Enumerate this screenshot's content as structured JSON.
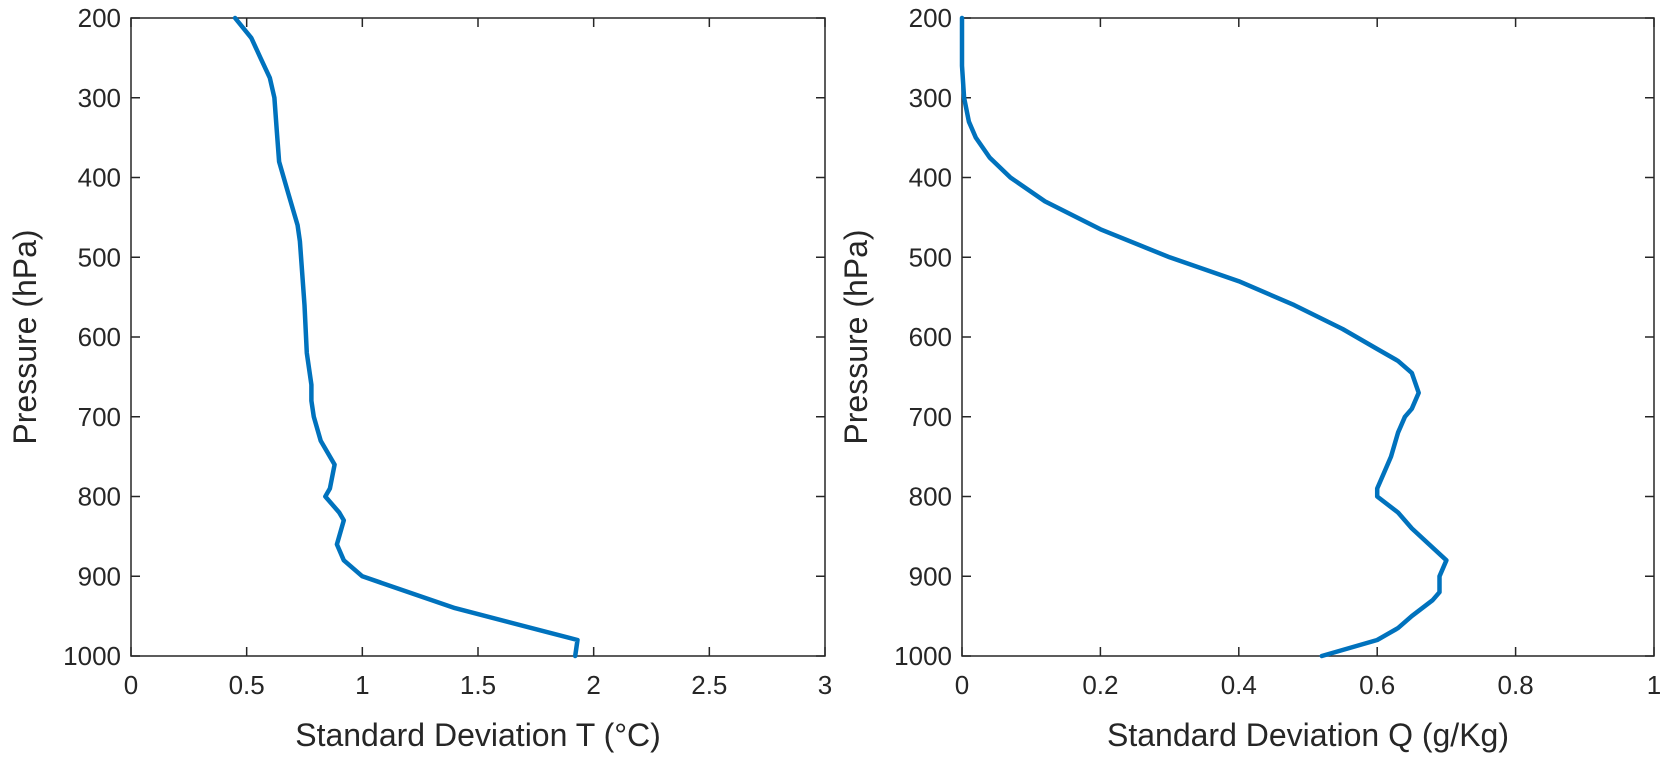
{
  "chart_data": [
    {
      "type": "line",
      "xlabel": "Standard Deviation T (°C)",
      "ylabel": "Pressure (hPa)",
      "xlim": [
        0,
        3
      ],
      "ylim": [
        200,
        1000
      ],
      "y_reversed": true,
      "grid": false,
      "xticks": [
        0,
        0.5,
        1,
        1.5,
        2,
        2.5,
        3
      ],
      "xtick_labels": [
        "0",
        "0.5",
        "1",
        "1.5",
        "2",
        "2.5",
        "3"
      ],
      "yticks": [
        200,
        300,
        400,
        500,
        600,
        700,
        800,
        900,
        1000
      ],
      "ytick_labels": [
        "200",
        "300",
        "400",
        "500",
        "600",
        "700",
        "800",
        "900",
        "1000"
      ],
      "color": "#0072BD",
      "series": [
        {
          "points": [
            [
              0.45,
              200
            ],
            [
              0.52,
              225
            ],
            [
              0.56,
              250
            ],
            [
              0.6,
              275
            ],
            [
              0.62,
              300
            ],
            [
              0.63,
              340
            ],
            [
              0.64,
              380
            ],
            [
              0.68,
              420
            ],
            [
              0.72,
              460
            ],
            [
              0.73,
              480
            ],
            [
              0.75,
              560
            ],
            [
              0.76,
              620
            ],
            [
              0.78,
              660
            ],
            [
              0.78,
              680
            ],
            [
              0.79,
              700
            ],
            [
              0.82,
              730
            ],
            [
              0.88,
              760
            ],
            [
              0.86,
              790
            ],
            [
              0.84,
              800
            ],
            [
              0.9,
              820
            ],
            [
              0.92,
              830
            ],
            [
              0.91,
              840
            ],
            [
              0.89,
              860
            ],
            [
              0.92,
              880
            ],
            [
              1.0,
              900
            ],
            [
              1.4,
              940
            ],
            [
              1.93,
              980
            ],
            [
              1.92,
              1000
            ]
          ]
        }
      ]
    },
    {
      "type": "line",
      "xlabel": "Standard Deviation Q (g/Kg)",
      "ylabel": "Pressure (hPa)",
      "xlim": [
        0,
        1
      ],
      "ylim": [
        200,
        1000
      ],
      "y_reversed": true,
      "grid": false,
      "xticks": [
        0,
        0.2,
        0.4,
        0.6,
        0.8,
        1
      ],
      "xtick_labels": [
        "0",
        "0.2",
        "0.4",
        "0.6",
        "0.8",
        "1"
      ],
      "yticks": [
        200,
        300,
        400,
        500,
        600,
        700,
        800,
        900,
        1000
      ],
      "ytick_labels": [
        "200",
        "300",
        "400",
        "500",
        "600",
        "700",
        "800",
        "900",
        "1000"
      ],
      "color": "#0072BD",
      "series": [
        {
          "points": [
            [
              0.0,
              200
            ],
            [
              0.0,
              260
            ],
            [
              0.003,
              300
            ],
            [
              0.01,
              330
            ],
            [
              0.02,
              350
            ],
            [
              0.04,
              375
            ],
            [
              0.07,
              400
            ],
            [
              0.12,
              430
            ],
            [
              0.2,
              465
            ],
            [
              0.3,
              500
            ],
            [
              0.4,
              530
            ],
            [
              0.48,
              560
            ],
            [
              0.55,
              590
            ],
            [
              0.6,
              615
            ],
            [
              0.63,
              630
            ],
            [
              0.65,
              645
            ],
            [
              0.66,
              670
            ],
            [
              0.65,
              690
            ],
            [
              0.64,
              700
            ],
            [
              0.63,
              720
            ],
            [
              0.62,
              750
            ],
            [
              0.61,
              770
            ],
            [
              0.6,
              790
            ],
            [
              0.6,
              800
            ],
            [
              0.63,
              820
            ],
            [
              0.65,
              840
            ],
            [
              0.7,
              880
            ],
            [
              0.69,
              900
            ],
            [
              0.69,
              920
            ],
            [
              0.68,
              930
            ],
            [
              0.65,
              950
            ],
            [
              0.63,
              965
            ],
            [
              0.6,
              980
            ],
            [
              0.52,
              1000
            ]
          ]
        }
      ]
    }
  ]
}
